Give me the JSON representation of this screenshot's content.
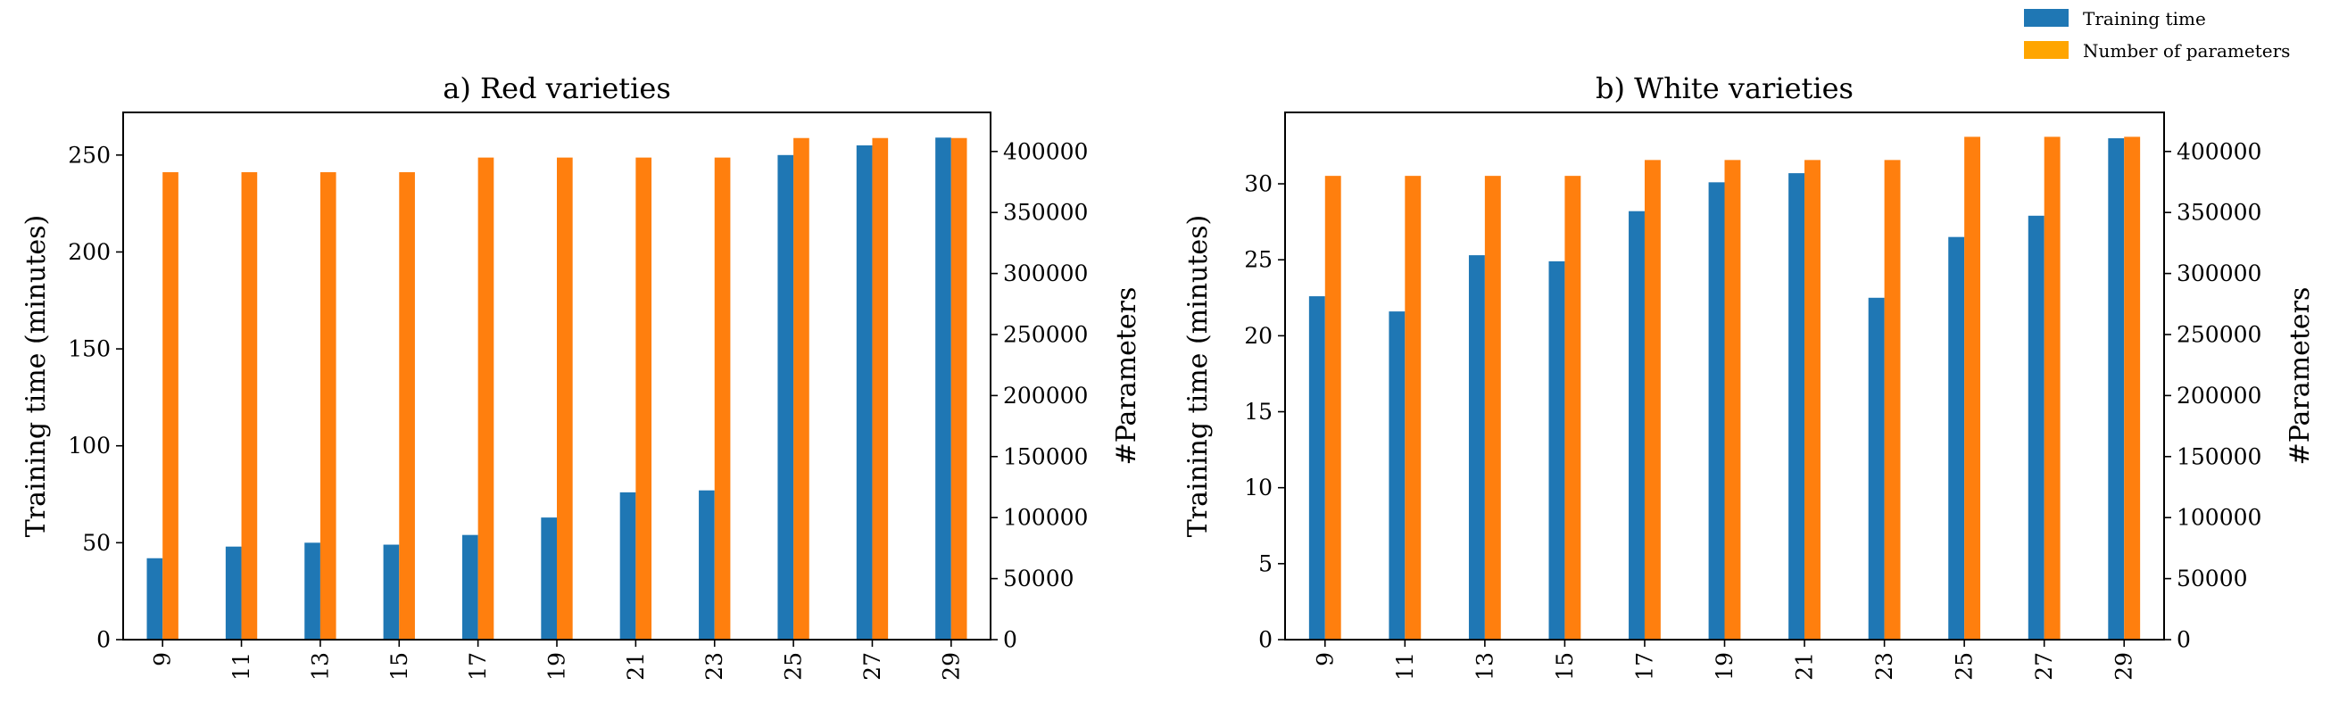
{
  "legend": {
    "items": [
      {
        "label": "Training time",
        "color": "#1f77b4"
      },
      {
        "label": "Number of parameters",
        "color": "#ffa500"
      }
    ]
  },
  "chart_data": [
    {
      "type": "bar",
      "title": "a) Red varieties",
      "xlabel": "",
      "ylabel": "Training time (minutes)",
      "y2label": "#Parameters",
      "categories": [
        "9",
        "11",
        "13",
        "15",
        "17",
        "19",
        "21",
        "23",
        "25",
        "27",
        "29"
      ],
      "ylim": [
        0,
        272
      ],
      "y2lim": [
        0,
        432000
      ],
      "yticks": [
        0,
        50,
        100,
        150,
        200,
        250
      ],
      "y2ticks": [
        0,
        50000,
        100000,
        150000,
        200000,
        250000,
        300000,
        350000,
        400000
      ],
      "series": [
        {
          "name": "Training time",
          "axis": "left",
          "color": "#1f77b4",
          "values": [
            42,
            48,
            50,
            49,
            54,
            63,
            76,
            77,
            250,
            255,
            259
          ]
        },
        {
          "name": "Number of parameters",
          "axis": "right",
          "color": "#ff7f0e",
          "values": [
            383000,
            383000,
            383000,
            383000,
            395000,
            395000,
            395000,
            395000,
            411000,
            411000,
            411000
          ]
        }
      ]
    },
    {
      "type": "bar",
      "title": "b) White varieties",
      "xlabel": "",
      "ylabel": "Training time (minutes)",
      "y2label": "#Parameters",
      "categories": [
        "9",
        "11",
        "13",
        "15",
        "17",
        "19",
        "21",
        "23",
        "25",
        "27",
        "29"
      ],
      "ylim": [
        0,
        34.7
      ],
      "y2lim": [
        0,
        432000
      ],
      "yticks": [
        0,
        5,
        10,
        15,
        20,
        25,
        30
      ],
      "y2ticks": [
        0,
        50000,
        100000,
        150000,
        200000,
        250000,
        300000,
        350000,
        400000
      ],
      "series": [
        {
          "name": "Training time",
          "axis": "left",
          "color": "#1f77b4",
          "values": [
            22.6,
            21.6,
            25.3,
            24.9,
            28.2,
            30.1,
            30.7,
            22.5,
            26.5,
            27.9,
            33.0
          ]
        },
        {
          "name": "Number of parameters",
          "axis": "right",
          "color": "#ff7f0e",
          "values": [
            380000,
            380000,
            380000,
            380000,
            393000,
            393000,
            393000,
            393000,
            412000,
            412000,
            412000
          ]
        }
      ]
    }
  ]
}
